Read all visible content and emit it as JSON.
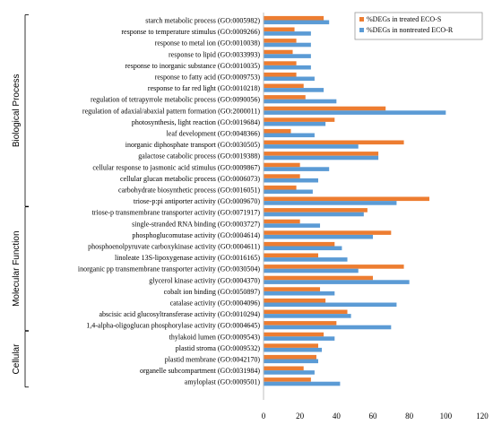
{
  "chart_data": {
    "type": "bar",
    "orientation": "horizontal",
    "title": "",
    "xlabel": "",
    "ylabel": "",
    "xlim": [
      0,
      120
    ],
    "x_ticks": [
      "0",
      "20",
      "40",
      "60",
      "80",
      "100",
      "120"
    ],
    "grid": false,
    "legend_position": "top-right",
    "categories": [
      "starch metabolic process (GO:0005982)",
      "response to temperature stimulus (GO:0009266)",
      "response to metal ion (GO:0010038)",
      "response to lipid (GO:0033993)",
      "response to inorganic substance (GO:0010035)",
      "response to fatty acid (GO:0009753)",
      "response to far red light (GO:0010218)",
      "regulation of tetrapyrrole metabolic process (GO:0090056)",
      "regulation of adaxial/abaxial pattern formation (GO:2000011)",
      "photosynthesis, light reaction (GO:0019684)",
      "leaf development (GO:0048366)",
      "inorganic diphosphate transport (GO:0030505)",
      "galactose catabolic process (GO:0019388)",
      "cellular response to jasmonic acid stimulus (GO:0009867)",
      "cellular glucan metabolic process (GO:0006073)",
      "carbohydrate biosynthetic process (GO:0016051)",
      "triose-p:pi antiporter activity (GO:0009670)",
      "triose-p transmembrane transporter activity (GO:0071917)",
      "single-stranded RNA binding (GO:0003727)",
      "phosphoglucomutase activity (GO:0004614)",
      "phosphoenolpyruvate carboxykinase activity (GO:0004611)",
      "linoleate 13S-lipoxygenase activity (GO:0016165)",
      "inorganic pp transmembrane transporter activity (GO:0030504)",
      "glycerol kinase activity (GO:0004370)",
      "cobalt ion binding (GO:0050897)",
      "catalase activity (GO:0004096)",
      "abscisic acid glucosyltransferase activity (GO:0010294)",
      "1,4-alpha-oligoglucan phosphorylase activity (GO:0004645)",
      "thylakoid lumen (GO:0009543)",
      "plastid stroma (GO:0009532)",
      "plastid membrane (GO:0042170)",
      "organelle subcompartment (GO:0031984)",
      "amyloplast (GO:0009501)"
    ],
    "series": [
      {
        "name": "%DEGs in treated ECO-S",
        "color": "#ED7D31",
        "values": [
          33,
          17,
          18,
          16,
          18,
          18,
          22,
          23,
          67,
          39,
          15,
          77,
          63,
          20,
          20,
          18,
          91,
          57,
          20,
          70,
          39,
          30,
          77,
          60,
          31,
          34,
          46,
          40,
          33,
          30,
          29,
          22,
          26
        ]
      },
      {
        "name": "%DEGs in nontreated ECO-R",
        "color": "#5B9BD5",
        "values": [
          36,
          26,
          26,
          26,
          26,
          28,
          33,
          40,
          100,
          34,
          28,
          52,
          63,
          36,
          30,
          27,
          73,
          55,
          31,
          60,
          43,
          46,
          52,
          80,
          39,
          73,
          48,
          70,
          39,
          32,
          30,
          28,
          42
        ]
      }
    ],
    "groups": [
      {
        "label": "Biological Process",
        "start": 0,
        "end": 16
      },
      {
        "label": "Molecular Function",
        "start": 17,
        "end": 27
      },
      {
        "label": "Cellular",
        "start": 28,
        "end": 32
      }
    ]
  }
}
